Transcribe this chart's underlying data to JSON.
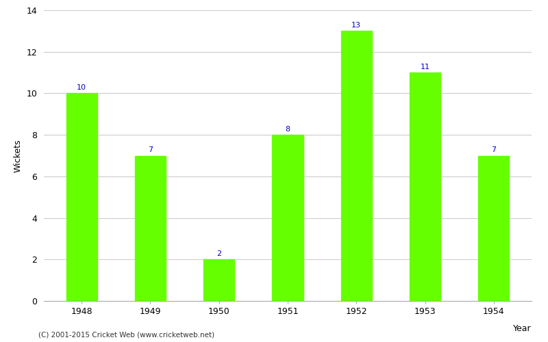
{
  "years": [
    "1948",
    "1949",
    "1950",
    "1951",
    "1952",
    "1953",
    "1954"
  ],
  "values": [
    10,
    7,
    2,
    8,
    13,
    11,
    7
  ],
  "bar_color": "#66ff00",
  "label_color": "#0000cc",
  "xlabel": "Year",
  "ylabel": "Wickets",
  "ylim": [
    0,
    14
  ],
  "yticks": [
    0,
    2,
    4,
    6,
    8,
    10,
    12,
    14
  ],
  "background_color": "#ffffff",
  "grid_color": "#cccccc",
  "annotation_fontsize": 8,
  "axis_label_fontsize": 9,
  "tick_fontsize": 9,
  "bar_width": 0.45,
  "footer_text": "(C) 2001-2015 Cricket Web (www.cricketweb.net)"
}
